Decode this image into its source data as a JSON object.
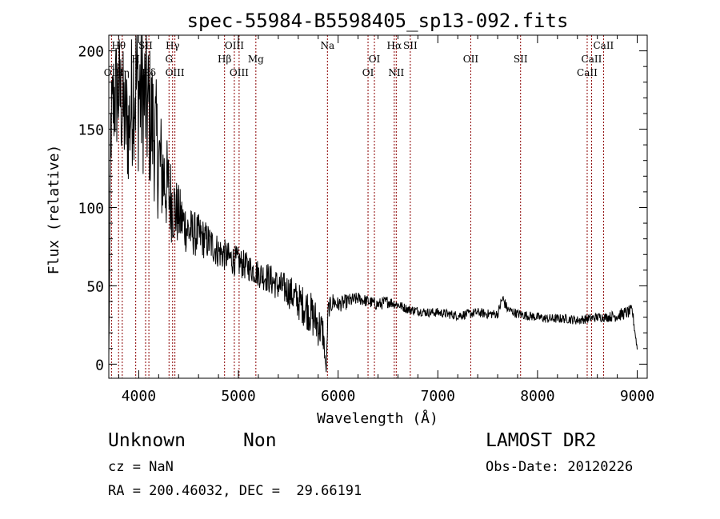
{
  "chart_data": {
    "type": "line",
    "title": "spec-55984-B5598405_sp13-092.fits",
    "xlabel": "Wavelength (Å)",
    "ylabel": "Flux (relative)",
    "xlim": [
      3700,
      9100
    ],
    "ylim": [
      -9,
      210
    ],
    "x_ticks": [
      4000,
      5000,
      6000,
      7000,
      8000,
      9000
    ],
    "y_ticks": [
      0,
      50,
      100,
      150,
      200
    ],
    "grid": false,
    "legend": "none",
    "series_color": "#000000",
    "line_color": "#8b0000",
    "spectrum_trend": {
      "x": [
        3700,
        3720,
        3750,
        3800,
        3850,
        3900,
        3950,
        4000,
        4050,
        4100,
        4150,
        4200,
        4250,
        4300,
        4350,
        4400,
        4450,
        4500,
        4600,
        4700,
        4800,
        4900,
        5000,
        5100,
        5200,
        5300,
        5400,
        5500,
        5600,
        5700,
        5800,
        5850,
        5880,
        5900,
        5950,
        6000,
        6100,
        6200,
        6300,
        6400,
        6500,
        6600,
        6700,
        6800,
        6900,
        7000,
        7100,
        7200,
        7300,
        7400,
        7500,
        7600,
        7650,
        7700,
        7800,
        7900,
        8000,
        8100,
        8200,
        8300,
        8400,
        8500,
        8600,
        8700,
        8800,
        8900,
        8950,
        9000
      ],
      "y": [
        5,
        150,
        170,
        175,
        160,
        150,
        180,
        175,
        170,
        160,
        150,
        130,
        120,
        110,
        100,
        95,
        90,
        85,
        82,
        78,
        72,
        68,
        65,
        62,
        58,
        55,
        50,
        47,
        40,
        35,
        25,
        20,
        -5,
        35,
        40,
        38,
        40,
        42,
        40,
        38,
        40,
        38,
        35,
        34,
        33,
        33,
        32,
        31,
        32,
        33,
        32,
        32,
        42,
        35,
        32,
        31,
        30,
        29,
        29,
        29,
        28,
        29,
        30,
        30,
        31,
        33,
        34,
        10
      ],
      "noise_amplitude": [
        2,
        30,
        40,
        40,
        40,
        40,
        50,
        55,
        50,
        50,
        45,
        40,
        35,
        30,
        25,
        20,
        18,
        16,
        14,
        12,
        11,
        10,
        10,
        9,
        9,
        10,
        10,
        11,
        12,
        14,
        14,
        12,
        0,
        6,
        6,
        5,
        5,
        4,
        4,
        4,
        4,
        3,
        3,
        3,
        3,
        3,
        3,
        3,
        3,
        3,
        3,
        3,
        4,
        3,
        3,
        3,
        3,
        3,
        3,
        3,
        3,
        3,
        3,
        3,
        4,
        4,
        4,
        2
      ]
    },
    "line_markers": [
      {
        "label": "Hθ",
        "x": 3798,
        "row": 0
      },
      {
        "label": "SII",
        "x": 4069,
        "row": 0
      },
      {
        "label": "Hγ",
        "x": 4340,
        "row": 0
      },
      {
        "label": "OIII",
        "x": 4959,
        "row": 0
      },
      {
        "label": "Na",
        "x": 5893,
        "row": 0
      },
      {
        "label": "Hα",
        "x": 6563,
        "row": 0
      },
      {
        "label": "SII",
        "x": 6724,
        "row": 0
      },
      {
        "label": "CaII",
        "x": 8662,
        "row": 0
      },
      {
        "label": "H",
        "x": 3970,
        "row": 1
      },
      {
        "label": "G",
        "x": 4304,
        "row": 1
      },
      {
        "label": "Hβ",
        "x": 4861,
        "row": 1
      },
      {
        "label": "Mg",
        "x": 5175,
        "row": 1
      },
      {
        "label": "OI",
        "x": 6364,
        "row": 1
      },
      {
        "label": "OII",
        "x": 7330,
        "row": 1
      },
      {
        "label": "SII",
        "x": 7830,
        "row": 1
      },
      {
        "label": "CaII",
        "x": 8542,
        "row": 1
      },
      {
        "label": "OII",
        "x": 3727,
        "row": 2
      },
      {
        "label": "Hη",
        "x": 3835,
        "row": 2
      },
      {
        "label": "Hδ",
        "x": 4102,
        "row": 2
      },
      {
        "label": "OIII",
        "x": 4363,
        "row": 2
      },
      {
        "label": "OIII",
        "x": 5007,
        "row": 2
      },
      {
        "label": "OI",
        "x": 6300,
        "row": 2
      },
      {
        "label": "NII",
        "x": 6583,
        "row": 2
      },
      {
        "label": "CaII",
        "x": 8498,
        "row": 2
      }
    ]
  },
  "info": {
    "object_class": "Unknown",
    "subclass": "Non",
    "survey": "LAMOST DR2",
    "redshift": "cz = NaN",
    "obs_date": "Obs-Date: 20120226",
    "coords": "RA = 200.46032, DEC =  29.66191"
  }
}
